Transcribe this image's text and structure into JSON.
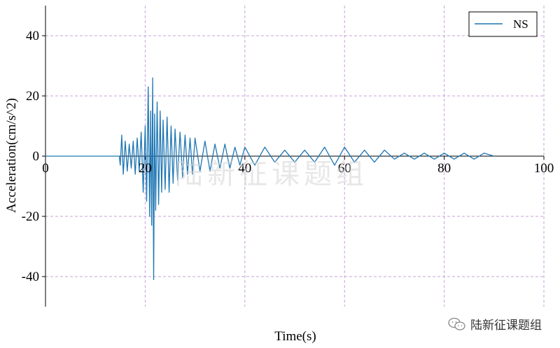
{
  "chart_data": {
    "type": "line",
    "title": "",
    "xlabel": "Time(s)",
    "ylabel": "Acceleration(cm/s^2)",
    "xlim": [
      0,
      100
    ],
    "ylim": [
      -50,
      50
    ],
    "x_ticks": [
      0,
      20,
      40,
      60,
      80,
      100
    ],
    "x_tick_labels": [
      "0",
      "20",
      "40",
      "60",
      "80",
      "100"
    ],
    "y_ticks": [
      40,
      20,
      0,
      -20,
      -40
    ],
    "y_tick_labels": [
      "40",
      "20",
      "0",
      "-20",
      "-40"
    ],
    "grid": true,
    "grid_color": "#c9a0dc",
    "legend_position": "top-right",
    "series": [
      {
        "name": "NS",
        "color": "#1f77b4",
        "x": [
          0,
          14.8,
          15,
          15.3,
          15.6,
          16,
          16.4,
          16.8,
          17.2,
          17.6,
          18,
          18.4,
          18.8,
          19.2,
          19.6,
          20,
          20.3,
          20.6,
          20.9,
          21.1,
          21.3,
          21.5,
          21.7,
          21.9,
          22.1,
          22.4,
          22.7,
          23,
          23.3,
          23.6,
          24,
          24.4,
          24.8,
          25.2,
          25.6,
          26,
          26.5,
          27,
          27.5,
          28,
          28.5,
          29,
          29.5,
          30,
          31,
          32,
          33,
          34,
          35,
          36,
          37,
          38,
          39,
          40,
          42,
          44,
          46,
          48,
          50,
          52,
          54,
          56,
          58,
          60,
          62,
          64,
          66,
          68,
          70,
          72,
          74,
          76,
          78,
          80,
          82,
          84,
          86,
          88,
          90
        ],
        "values": [
          0,
          0,
          -3,
          7,
          -6,
          5,
          -5,
          4,
          -4,
          5,
          -6,
          6,
          -5,
          8,
          -12,
          10,
          -15,
          23,
          -20,
          15,
          -23,
          26,
          -41,
          14,
          -18,
          18,
          -16,
          15,
          -12,
          12,
          -11,
          13,
          -12,
          10,
          -9,
          9,
          -8,
          8,
          -7,
          7,
          -6,
          6,
          -6,
          6,
          -5,
          5,
          -5,
          4,
          -4,
          4,
          -4,
          3,
          -3,
          3,
          -3,
          3,
          -2,
          2,
          -2,
          2,
          -2,
          3,
          -3,
          3,
          -2,
          2,
          -2,
          2,
          -1,
          1,
          -1,
          1,
          -1,
          1,
          -1,
          1,
          -1,
          1,
          0
        ]
      }
    ]
  },
  "watermark": {
    "center_text": "陆新征课题组",
    "footer_text": "陆新征课题组",
    "footer_icon": "wechat-icon"
  }
}
